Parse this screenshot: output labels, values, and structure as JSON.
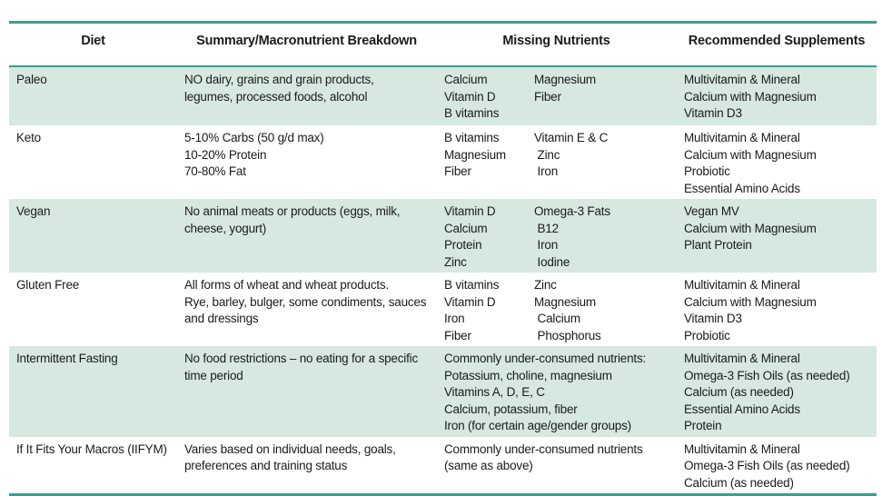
{
  "table": {
    "headers": [
      "Diet",
      "Summary/Macronutrient Breakdown",
      "Missing Nutrients",
      "Recommended Supplements"
    ],
    "rows": [
      {
        "diet": "Paleo",
        "summary_lines": [
          "NO dairy, grains and grain products,",
          "legumes, processed foods, alcohol"
        ],
        "missing": {
          "col1": [
            "Calcium",
            "Vitamin D",
            "B vitamins"
          ],
          "col2": [
            "Magnesium",
            "Fiber"
          ]
        },
        "supplements": [
          "Multivitamin & Mineral",
          "Calcium with Magnesium",
          "Vitamin D3"
        ]
      },
      {
        "diet": "Keto",
        "summary_lines": [
          "5-10% Carbs (50 g/d max)",
          "10-20% Protein",
          "70-80% Fat"
        ],
        "missing": {
          "col1": [
            "B vitamins",
            "Magnesium",
            "Fiber"
          ],
          "col2": [
            "Vitamin E & C",
            " Zinc",
            " Iron"
          ]
        },
        "supplements": [
          "Multivitamin & Mineral",
          "Calcium with Magnesium",
          "Probiotic",
          "Essential Amino Acids"
        ]
      },
      {
        "diet": "Vegan",
        "summary_lines": [
          "No animal meats or products (eggs, milk,",
          "cheese, yogurt)"
        ],
        "missing": {
          "col1": [
            "Vitamin D",
            "Calcium",
            "Protein",
            "Zinc"
          ],
          "col2": [
            "Omega-3 Fats",
            " B12",
            " Iron",
            " Iodine"
          ]
        },
        "supplements": [
          "Vegan MV",
          "Calcium with Magnesium",
          "Plant Protein"
        ]
      },
      {
        "diet": "Gluten Free",
        "summary_lines": [
          "All forms of wheat and wheat products.",
          "Rye, barley, bulger, some condiments, sauces",
          "and dressings"
        ],
        "missing": {
          "col1": [
            "B vitamins",
            "Vitamin D",
            "Iron",
            "Fiber"
          ],
          "col2": [
            "Zinc",
            "Magnesium",
            " Calcium",
            " Phosphorus"
          ]
        },
        "supplements": [
          "Multivitamin & Mineral",
          "Calcium with Magnesium",
          "Vitamin D3",
          "Probiotic"
        ]
      },
      {
        "diet": "Intermittent Fasting",
        "summary_lines": [
          "No food restrictions – no eating for a specific",
          "time period"
        ],
        "missing": {
          "lines": [
            "Commonly under-consumed nutrients:",
            "Potassium, choline, magnesium",
            "Vitamins A, D, E, C",
            "Calcium, potassium, fiber",
            "Iron (for certain age/gender groups)"
          ]
        },
        "supplements": [
          "Multivitamin & Mineral",
          "Omega-3 Fish Oils (as needed)",
          "Calcium (as needed)",
          "Essential Amino Acids",
          "Protein"
        ]
      },
      {
        "diet": "If It Fits Your Macros (IIFYM)",
        "summary_lines": [
          "Varies based on individual needs, goals,",
          "preferences and training status"
        ],
        "missing": {
          "lines": [
            "Commonly under-consumed nutrients",
            "(same as above)"
          ]
        },
        "supplements": [
          "Multivitamin & Mineral",
          "Omega-3 Fish Oils (as needed)",
          "Calcium (as needed)"
        ]
      }
    ]
  },
  "colors": {
    "accent_teal": "#35a08c",
    "row_alt_bg": "#d6e8e0",
    "text": "#1b1b1b"
  }
}
